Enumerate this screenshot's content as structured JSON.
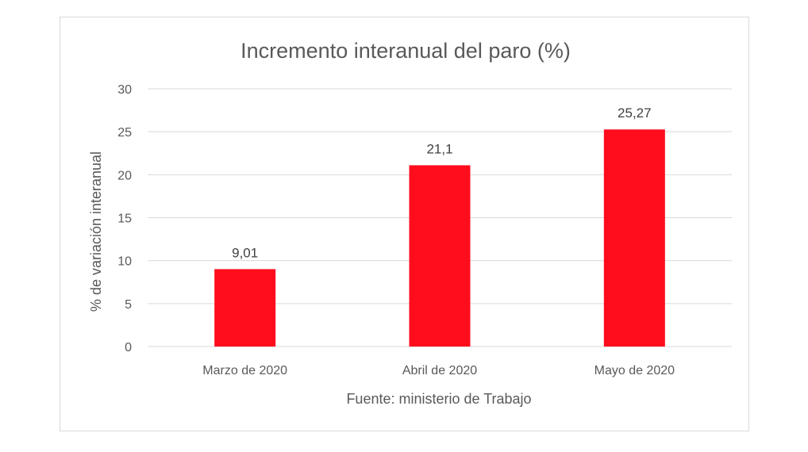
{
  "chart_data": {
    "type": "bar",
    "title": "Incremento interanual del paro (%)",
    "xlabel": "Fuente: ministerio de Trabajo",
    "ylabel": "% de variación interanual",
    "categories": [
      "Marzo de 2020",
      "Abril de 2020",
      "Mayo de 2020"
    ],
    "series": [
      {
        "values": [
          9.01,
          21.1,
          25.27
        ],
        "color": "#ff0d1d"
      }
    ],
    "data_labels": [
      "9,01",
      "21,1",
      "25,27"
    ],
    "ylim": [
      0,
      30
    ],
    "yticks": [
      0,
      5,
      10,
      15,
      20,
      25,
      30
    ],
    "grid": true,
    "legend": "none",
    "colors": {
      "bar": "#ff0d1d",
      "grid": "#d9d9d9",
      "text": "#595959"
    }
  }
}
